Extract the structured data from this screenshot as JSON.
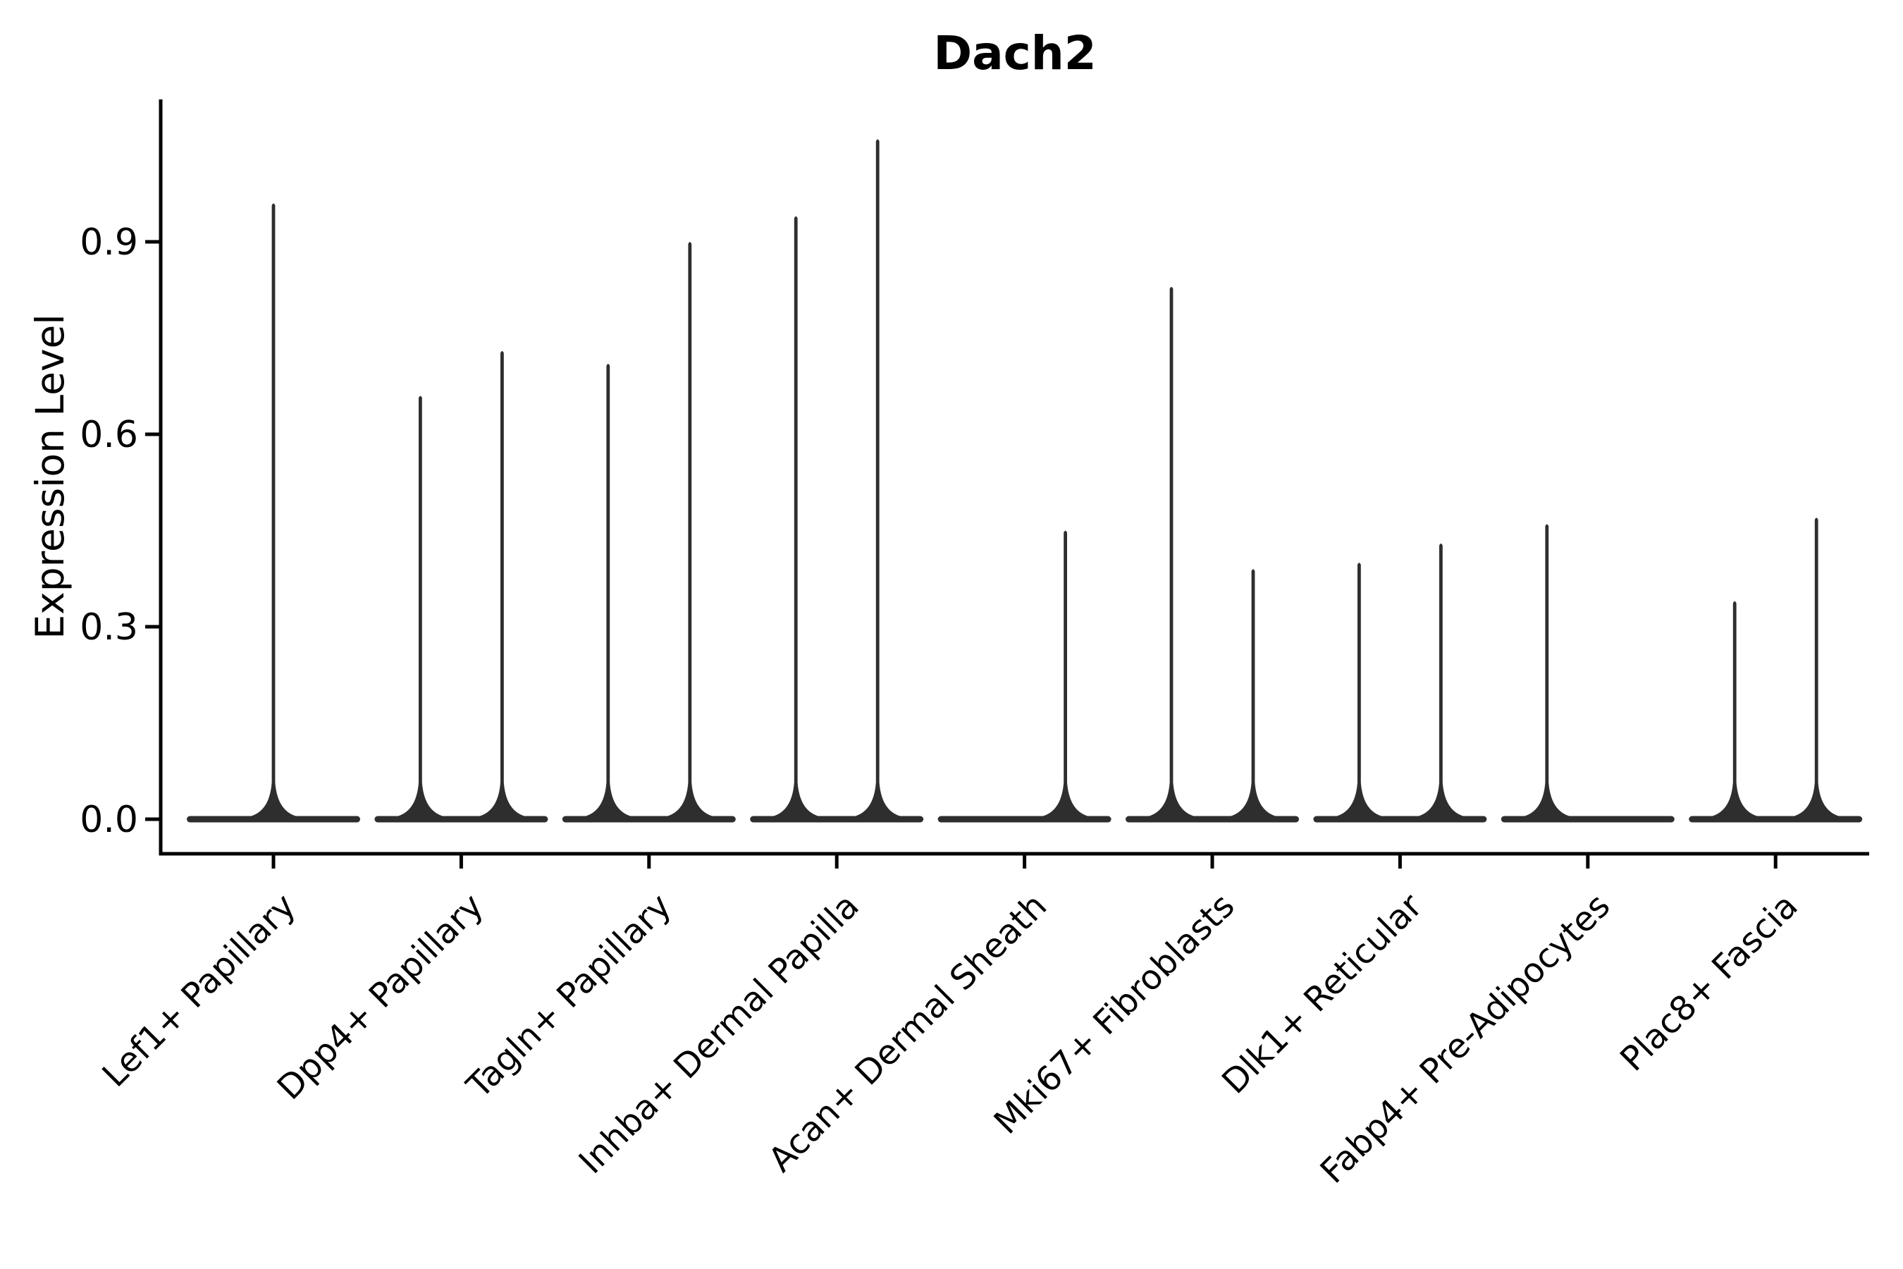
{
  "title": "Dach2",
  "colors": {
    "ink": "#000000",
    "violin": "#2e2e2e",
    "background": "#ffffff"
  },
  "chart_data": {
    "type": "violin",
    "title": "Dach2",
    "xlabel": "",
    "ylabel": "Expression Level",
    "ylim": [
      -0.05,
      1.12
    ],
    "y_ticks": [
      0.0,
      0.3,
      0.6,
      0.9
    ],
    "y_tick_labels": [
      "0.0",
      "0.3",
      "0.6",
      "0.9"
    ],
    "x_tick_label_rotation": 45,
    "grid": false,
    "legend": "none",
    "baseline_value": 0.0,
    "categories": [
      "Lef1+ Papillary",
      "Dpp4+ Papillary",
      "Tagln+ Papillary",
      "Inhba+ Dermal Papilla",
      "Acan+ Dermal Sheath",
      "Mki67+ Fibroblasts",
      "Dlk1+ Reticular",
      "Fabp4+ Pre-Adipocytes",
      "Plac8+ Fascia"
    ],
    "violins": [
      {
        "category": "Lef1+ Papillary",
        "position": "center",
        "max_expression": 0.96
      },
      {
        "category": "Dpp4+ Papillary",
        "position": "left",
        "max_expression": 0.66
      },
      {
        "category": "Dpp4+ Papillary",
        "position": "right",
        "max_expression": 0.73
      },
      {
        "category": "Tagln+ Papillary",
        "position": "left",
        "max_expression": 0.71
      },
      {
        "category": "Tagln+ Papillary",
        "position": "right",
        "max_expression": 0.9
      },
      {
        "category": "Inhba+ Dermal Papilla",
        "position": "left",
        "max_expression": 0.94
      },
      {
        "category": "Inhba+ Dermal Papilla",
        "position": "right",
        "max_expression": 1.06
      },
      {
        "category": "Acan+ Dermal Sheath",
        "position": "right",
        "max_expression": 0.45
      },
      {
        "category": "Mki67+ Fibroblasts",
        "position": "left",
        "max_expression": 0.83
      },
      {
        "category": "Mki67+ Fibroblasts",
        "position": "right",
        "max_expression": 0.39
      },
      {
        "category": "Dlk1+ Reticular",
        "position": "left",
        "max_expression": 0.4
      },
      {
        "category": "Dlk1+ Reticular",
        "position": "right",
        "max_expression": 0.43
      },
      {
        "category": "Fabp4+ Pre-Adipocytes",
        "position": "left",
        "max_expression": 0.46
      },
      {
        "category": "Plac8+ Fascia",
        "position": "left",
        "max_expression": 0.34
      },
      {
        "category": "Plac8+ Fascia",
        "position": "right",
        "max_expression": 0.47
      }
    ],
    "description": "Violin plot of Dach2 expression per fibroblast cluster: wide flat violins at 0 with thin density spikes reaching each group's maximum expression."
  }
}
